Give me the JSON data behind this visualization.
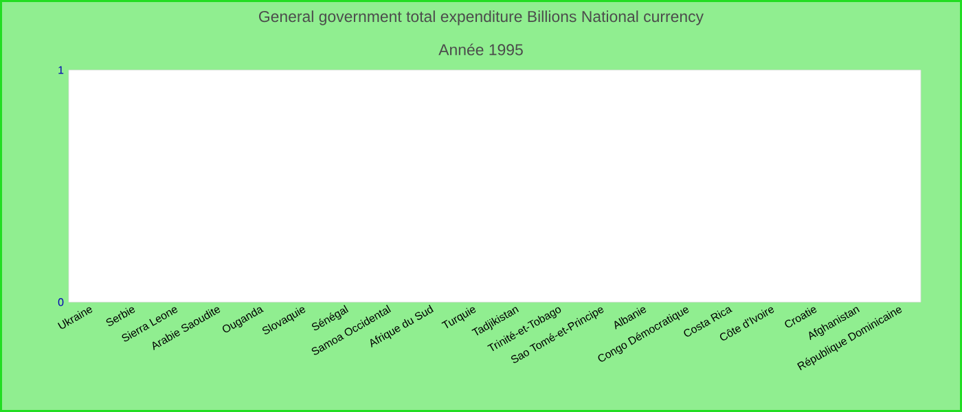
{
  "chart_data": {
    "type": "bar",
    "title": "General government total expenditure Billions National currency",
    "subtitle": "Année 1995",
    "categories": [
      "Ukraine",
      "Serbie",
      "Sierra Leone",
      "Arabie Saoudite",
      "Ouganda",
      "Slovaquie",
      "Sénégal",
      "Samoa Occidental",
      "Afrique du Sud",
      "Turquie",
      "Tadjikistan",
      "Trinité-et-Tobago",
      "Sao Tomé-et-Principe",
      "Albanie",
      "Congo Démocratique",
      "Costa Rica",
      "Côte d'Ivoire",
      "Croatie",
      "Afghanistan",
      "République Dominicaine"
    ],
    "values": [
      0,
      0,
      0,
      0,
      0,
      0,
      0,
      0,
      0,
      0,
      0,
      0,
      0,
      0,
      0,
      0,
      0,
      0,
      0,
      0
    ],
    "ylim": [
      0,
      1
    ],
    "yticks": [
      0,
      1
    ],
    "grid": false
  }
}
